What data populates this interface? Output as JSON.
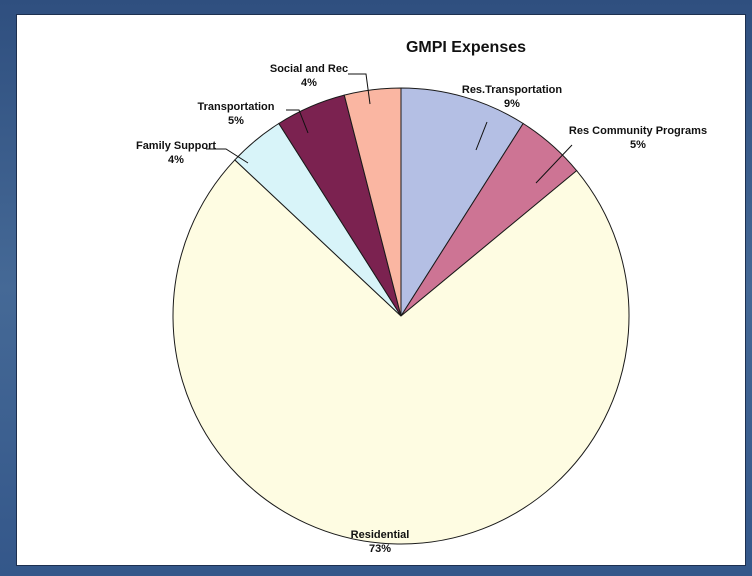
{
  "chart_data": {
    "type": "pie",
    "title": "GMPI Expenses",
    "slices": [
      {
        "label": "Res.Transportation",
        "value": 9,
        "display": "9%",
        "color": "#b4bfe4"
      },
      {
        "label": "Res Community Programs",
        "value": 5,
        "display": "5%",
        "color": "#cd7494"
      },
      {
        "label": "Residential",
        "value": 73,
        "display": "73%",
        "color": "#fefce2"
      },
      {
        "label": "Family Support",
        "value": 4,
        "display": "4%",
        "color": "#d8f4f9"
      },
      {
        "label": "Transportation",
        "value": 5,
        "display": "5%",
        "color": "#7b2250"
      },
      {
        "label": "Social and Rec",
        "value": 4,
        "display": "4%",
        "color": "#fab6a2"
      }
    ],
    "legend": "none",
    "start": "top, clockwise"
  }
}
